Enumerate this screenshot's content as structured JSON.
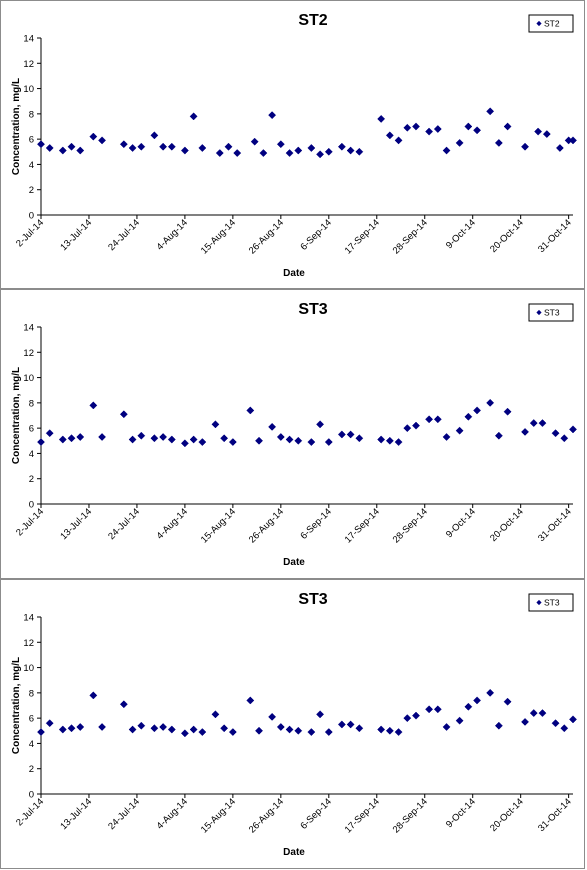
{
  "chart_data": [
    {
      "type": "scatter",
      "title": "ST2",
      "xlabel": "Date",
      "ylabel": "Concentration, mg/L",
      "ylim": [
        0,
        14
      ],
      "yticks": [
        0,
        2,
        4,
        6,
        8,
        10,
        12,
        14
      ],
      "xlim": [
        "2014-07-02",
        "2014-11-01"
      ],
      "xticks": [
        "2-Jul-14",
        "13-Jul-14",
        "24-Jul-14",
        "4-Aug-14",
        "15-Aug-14",
        "26-Aug-14",
        "6-Sep-14",
        "17-Sep-14",
        "28-Sep-14",
        "9-Oct-14",
        "20-Oct-14",
        "31-Oct-14"
      ],
      "grid": false,
      "legend": "top-right",
      "marker": "diamond",
      "color": "#000080",
      "series": [
        {
          "name": "ST2",
          "x": [
            "2014-07-02",
            "2014-07-04",
            "2014-07-07",
            "2014-07-09",
            "2014-07-11",
            "2014-07-14",
            "2014-07-16",
            "2014-07-21",
            "2014-07-23",
            "2014-07-25",
            "2014-07-28",
            "2014-07-30",
            "2014-08-01",
            "2014-08-04",
            "2014-08-06",
            "2014-08-08",
            "2014-08-12",
            "2014-08-14",
            "2014-08-16",
            "2014-08-20",
            "2014-08-22",
            "2014-08-24",
            "2014-08-26",
            "2014-08-28",
            "2014-08-30",
            "2014-09-02",
            "2014-09-04",
            "2014-09-06",
            "2014-09-09",
            "2014-09-11",
            "2014-09-13",
            "2014-09-18",
            "2014-09-20",
            "2014-09-22",
            "2014-09-24",
            "2014-09-26",
            "2014-09-29",
            "2014-10-01",
            "2014-10-03",
            "2014-10-06",
            "2014-10-08",
            "2014-10-10",
            "2014-10-13",
            "2014-10-15",
            "2014-10-17",
            "2014-10-21",
            "2014-10-24",
            "2014-10-26",
            "2014-10-29",
            "2014-10-31",
            "2014-11-01"
          ],
          "y": [
            5.6,
            5.3,
            5.1,
            5.4,
            5.1,
            6.2,
            5.9,
            5.6,
            5.3,
            5.4,
            6.3,
            5.4,
            5.4,
            5.1,
            7.8,
            5.3,
            4.9,
            5.4,
            4.9,
            5.8,
            4.9,
            7.9,
            5.6,
            4.9,
            5.1,
            5.3,
            4.8,
            5.0,
            5.4,
            5.1,
            5.0,
            7.6,
            6.3,
            5.9,
            6.9,
            7.0,
            6.6,
            6.8,
            5.1,
            5.7,
            7.0,
            6.7,
            8.2,
            5.7,
            7.0,
            5.4,
            6.6,
            6.4,
            5.3,
            5.9,
            5.9
          ]
        }
      ]
    },
    {
      "type": "scatter",
      "title": "ST3",
      "xlabel": "Date",
      "ylabel": "Concentration, mg/L",
      "ylim": [
        0,
        14
      ],
      "yticks": [
        0,
        2,
        4,
        6,
        8,
        10,
        12,
        14
      ],
      "xlim": [
        "2014-07-02",
        "2014-11-01"
      ],
      "xticks": [
        "2-Jul-14",
        "13-Jul-14",
        "24-Jul-14",
        "4-Aug-14",
        "15-Aug-14",
        "26-Aug-14",
        "6-Sep-14",
        "17-Sep-14",
        "28-Sep-14",
        "9-Oct-14",
        "20-Oct-14",
        "31-Oct-14"
      ],
      "grid": false,
      "legend": "top-right",
      "marker": "diamond",
      "color": "#000080",
      "series": [
        {
          "name": "ST3",
          "x": [
            "2014-07-02",
            "2014-07-04",
            "2014-07-07",
            "2014-07-09",
            "2014-07-11",
            "2014-07-14",
            "2014-07-16",
            "2014-07-21",
            "2014-07-23",
            "2014-07-25",
            "2014-07-28",
            "2014-07-30",
            "2014-08-01",
            "2014-08-04",
            "2014-08-06",
            "2014-08-08",
            "2014-08-11",
            "2014-08-13",
            "2014-08-15",
            "2014-08-19",
            "2014-08-21",
            "2014-08-24",
            "2014-08-26",
            "2014-08-28",
            "2014-08-30",
            "2014-09-02",
            "2014-09-04",
            "2014-09-06",
            "2014-09-09",
            "2014-09-11",
            "2014-09-13",
            "2014-09-18",
            "2014-09-20",
            "2014-09-22",
            "2014-09-24",
            "2014-09-26",
            "2014-09-29",
            "2014-10-01",
            "2014-10-03",
            "2014-10-06",
            "2014-10-08",
            "2014-10-10",
            "2014-10-13",
            "2014-10-15",
            "2014-10-17",
            "2014-10-21",
            "2014-10-23",
            "2014-10-25",
            "2014-10-28",
            "2014-10-30",
            "2014-11-01"
          ],
          "y": [
            4.9,
            5.6,
            5.1,
            5.2,
            5.3,
            7.8,
            5.3,
            7.1,
            5.1,
            5.4,
            5.2,
            5.3,
            5.1,
            4.8,
            5.1,
            4.9,
            6.3,
            5.2,
            4.9,
            7.4,
            5.0,
            6.1,
            5.3,
            5.1,
            5.0,
            4.9,
            6.3,
            4.9,
            5.5,
            5.5,
            5.2,
            5.1,
            5.0,
            4.9,
            6.0,
            6.2,
            6.7,
            6.7,
            5.3,
            5.8,
            6.9,
            7.4,
            8.0,
            5.4,
            7.3,
            5.7,
            6.4,
            6.4,
            5.6,
            5.2,
            5.9
          ]
        }
      ]
    },
    {
      "type": "scatter",
      "title": "ST3",
      "xlabel": "Date",
      "ylabel": "Concentration, mg/L",
      "ylim": [
        0,
        14
      ],
      "yticks": [
        0,
        2,
        4,
        6,
        8,
        10,
        12,
        14
      ],
      "xlim": [
        "2014-07-02",
        "2014-11-01"
      ],
      "xticks": [
        "2-Jul-14",
        "13-Jul-14",
        "24-Jul-14",
        "4-Aug-14",
        "15-Aug-14",
        "26-Aug-14",
        "6-Sep-14",
        "17-Sep-14",
        "28-Sep-14",
        "9-Oct-14",
        "20-Oct-14",
        "31-Oct-14"
      ],
      "grid": false,
      "legend": "top-right",
      "marker": "diamond",
      "color": "#000080",
      "series": [
        {
          "name": "ST3",
          "x": [
            "2014-07-02",
            "2014-07-04",
            "2014-07-07",
            "2014-07-09",
            "2014-07-11",
            "2014-07-14",
            "2014-07-16",
            "2014-07-21",
            "2014-07-23",
            "2014-07-25",
            "2014-07-28",
            "2014-07-30",
            "2014-08-01",
            "2014-08-04",
            "2014-08-06",
            "2014-08-08",
            "2014-08-11",
            "2014-08-13",
            "2014-08-15",
            "2014-08-19",
            "2014-08-21",
            "2014-08-24",
            "2014-08-26",
            "2014-08-28",
            "2014-08-30",
            "2014-09-02",
            "2014-09-04",
            "2014-09-06",
            "2014-09-09",
            "2014-09-11",
            "2014-09-13",
            "2014-09-18",
            "2014-09-20",
            "2014-09-22",
            "2014-09-24",
            "2014-09-26",
            "2014-09-29",
            "2014-10-01",
            "2014-10-03",
            "2014-10-06",
            "2014-10-08",
            "2014-10-10",
            "2014-10-13",
            "2014-10-15",
            "2014-10-17",
            "2014-10-21",
            "2014-10-23",
            "2014-10-25",
            "2014-10-28",
            "2014-10-30",
            "2014-11-01"
          ],
          "y": [
            4.9,
            5.6,
            5.1,
            5.2,
            5.3,
            7.8,
            5.3,
            7.1,
            5.1,
            5.4,
            5.2,
            5.3,
            5.1,
            4.8,
            5.1,
            4.9,
            6.3,
            5.2,
            4.9,
            7.4,
            5.0,
            6.1,
            5.3,
            5.1,
            5.0,
            4.9,
            6.3,
            4.9,
            5.5,
            5.5,
            5.2,
            5.1,
            5.0,
            4.9,
            6.0,
            6.2,
            6.7,
            6.7,
            5.3,
            5.8,
            6.9,
            7.4,
            8.0,
            5.4,
            7.3,
            5.7,
            6.4,
            6.4,
            5.6,
            5.2,
            5.9
          ]
        }
      ]
    }
  ]
}
